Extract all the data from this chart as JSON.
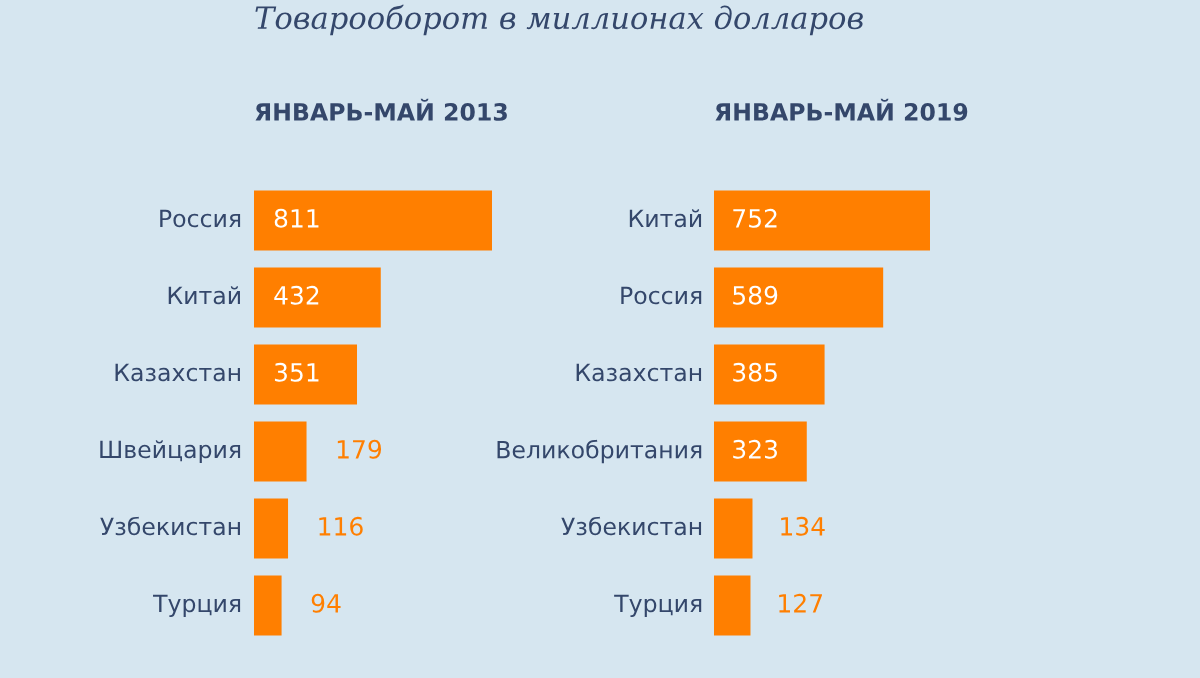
{
  "chart_data": [
    {
      "type": "bar",
      "orientation": "horizontal",
      "subtitle": "Товарооборот в миллионах долларов",
      "title": "ЯНВАРЬ-МАЙ 2013",
      "categories": [
        "Россия",
        "Китай",
        "Казахстан",
        "Швейцария",
        "Узбекистан",
        "Турция"
      ],
      "values": [
        811,
        432,
        351,
        179,
        116,
        94
      ],
      "color": "#ff7f00",
      "data_labels": true
    },
    {
      "type": "bar",
      "orientation": "horizontal",
      "title": "ЯНВАРЬ-МАЙ 2019",
      "categories": [
        "Китай",
        "Россия",
        "Казахстан",
        "Великобритания",
        "Узбекистан",
        "Турция"
      ],
      "values": [
        752,
        589,
        385,
        323,
        134,
        127
      ],
      "color": "#ff7f00",
      "data_labels": true
    }
  ]
}
